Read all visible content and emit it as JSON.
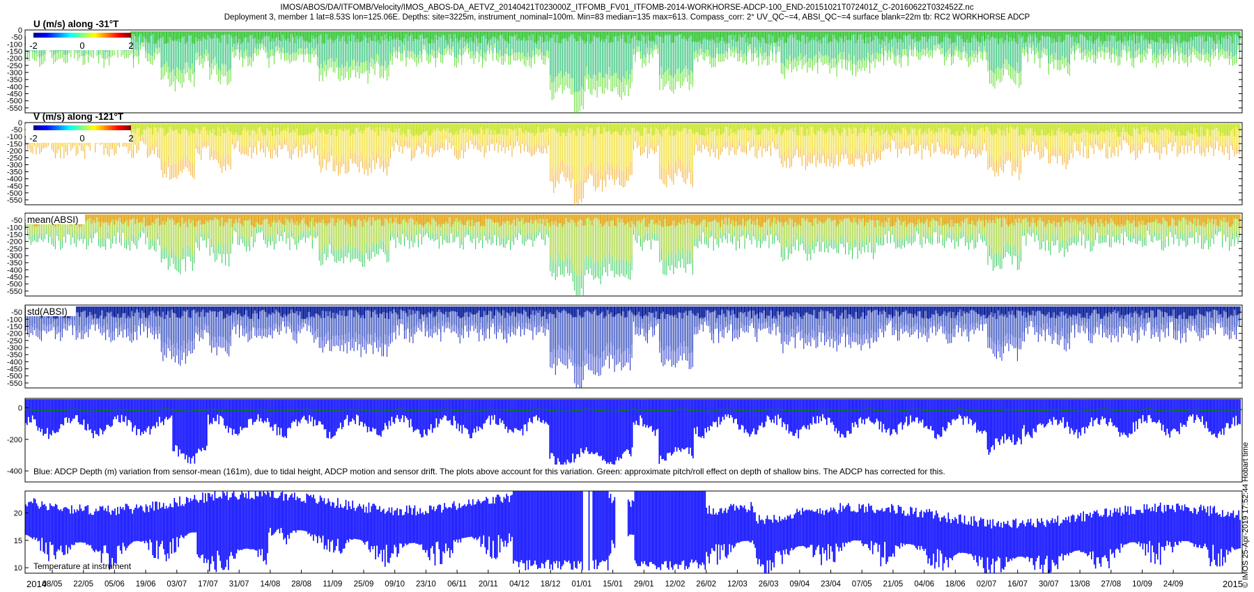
{
  "header": {
    "line1": "IMOS/ABOS/DA/ITFOMB/Velocity/IMOS_ABOS-DA_AETVZ_20140421T023000Z_ITFOMB_FV01_ITFOMB-2014-WORKHORSE-ADCP-100_END-20151021T072401Z_C-20160622T032452Z.nc",
    "line2": "Deployment 3, member 1 lat=8.53S lon=125.06E. Depths: site=3225m, instrument_nominal=100m. Min=83 median=135 max=613. Compass_corr: 2° UV_QC~=4, ABSI_QC~=4 surface blank=22m tb: RC2 WORKHORSE ADCP"
  },
  "side_note": "© IMOS 25-Apr-2019 17:52:44 Hobart time",
  "chart_data": [
    {
      "type": "heatmap",
      "label": "U (m/s) along -31°T",
      "colorbar": {
        "min_label": "-2",
        "mid_label": "0",
        "max_label": "2",
        "min": -2,
        "max": 2
      },
      "y_ticks": [
        0,
        -50,
        -100,
        -150,
        -200,
        -250,
        -300,
        -350,
        -400,
        -450,
        -500,
        -550
      ],
      "ylim": [
        -585,
        0
      ],
      "colors": {
        "bulk": "#3cc83c",
        "mid": "#1fbe6e",
        "tail": "#55dd22"
      }
    },
    {
      "type": "heatmap",
      "label": "V (m/s) along -121°T",
      "colorbar": {
        "min_label": "-2",
        "mid_label": "0",
        "max_label": "2",
        "min": -2,
        "max": 2
      },
      "y_ticks": [
        0,
        -50,
        -100,
        -150,
        -200,
        -250,
        -300,
        -350,
        -400,
        -450,
        -500,
        -550
      ],
      "ylim": [
        -585,
        0
      ],
      "colors": {
        "bulk": "#c8e632",
        "mid": "#f0dc1e",
        "tail": "#f5aa19"
      }
    },
    {
      "type": "heatmap",
      "label": "mean(ABSI)",
      "y_ticks": [
        -50,
        -100,
        -150,
        -200,
        -250,
        -300,
        -350,
        -400,
        -450,
        -500,
        -550
      ],
      "ylim": [
        -585,
        0
      ],
      "colors": {
        "bulk": "#e6aa1e",
        "mid": "#a0d228",
        "tail": "#28c850"
      }
    },
    {
      "type": "heatmap",
      "label": "std(ABSI)",
      "y_ticks": [
        -50,
        -100,
        -150,
        -200,
        -250,
        -300,
        -350,
        -400,
        -450,
        -500,
        -550
      ],
      "ylim": [
        -585,
        0
      ],
      "colors": {
        "bulk": "#0a1e9b",
        "mid": "#1432b4",
        "tail": "#1428c8"
      }
    },
    {
      "type": "line",
      "y_ticks": [
        0,
        -200,
        -400
      ],
      "ylim": [
        -470,
        60
      ],
      "caption": "Blue: ADCP Depth (m) variation from sensor-mean (161m), due to tidal height, ADCP motion and sensor drift. The plots above account for this variation. Green: approximate pitch/roll effect on depth of shallow bins. The ADCP has corrected for this.",
      "series": [
        {
          "color": "#0000ff"
        },
        {
          "color": "#008000"
        }
      ]
    },
    {
      "type": "line",
      "y_ticks": [
        10,
        15,
        20
      ],
      "ylim": [
        9,
        24
      ],
      "caption": "Temperature at instrument",
      "series": [
        {
          "color": "#0000ff"
        }
      ]
    }
  ],
  "x_axis": {
    "year_start": "2014",
    "year_end": "2015",
    "tick_labels": [
      "08/05",
      "22/05",
      "05/06",
      "19/06",
      "03/07",
      "17/07",
      "31/07",
      "14/08",
      "28/08",
      "11/09",
      "25/09",
      "09/10",
      "23/10",
      "06/11",
      "20/11",
      "04/12",
      "18/12",
      "01/01",
      "15/01",
      "29/01",
      "12/02",
      "26/02",
      "12/03",
      "26/03",
      "09/04",
      "23/04",
      "07/05",
      "21/05",
      "04/06",
      "18/06",
      "02/07",
      "16/07",
      "30/07",
      "13/08",
      "27/08",
      "10/09",
      "24/09"
    ]
  }
}
